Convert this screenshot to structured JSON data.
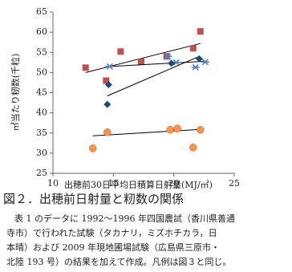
{
  "chart_data": {
    "type": "scatter",
    "xlabel": "出穂前30日平均日積算日射量(MJ/㎡)",
    "ylabel": "㎡当たり籾数(千粒)",
    "xlim": [
      10,
      25
    ],
    "xticks": [
      10,
      15,
      20,
      25
    ],
    "ylim": [
      25,
      65
    ],
    "yticks": [
      25,
      30,
      35,
      40,
      45,
      50,
      55,
      60,
      65
    ],
    "series": [
      {
        "marker": "square",
        "color": "#c0504d",
        "x": [
          12.7,
          14.4,
          15.6,
          17.3,
          19.4,
          21.6,
          22.2
        ],
        "values": [
          51.2,
          48.0,
          55.2,
          52.7,
          54.0,
          56.0,
          60.2
        ],
        "trend": {
          "x": [
            12.7,
            22.2
          ],
          "values": [
            50.0,
            57.2
          ]
        }
      },
      {
        "marker": "asterisk",
        "color": "#4f81bd",
        "x": [
          14.7,
          19.5,
          20.2,
          21.8,
          22.6
        ],
        "values": [
          51.5,
          54.0,
          52.5,
          51.3,
          52.6
        ],
        "trend": {
          "x": [
            14.7,
            22.6
          ],
          "values": [
            51.5,
            52.8
          ]
        }
      },
      {
        "marker": "diamond",
        "color": "#1f497d",
        "x": [
          14.6,
          14.5,
          19.8,
          22.1
        ],
        "values": [
          47.0,
          42.1,
          52.3,
          53.4
        ],
        "trend": {
          "x": [
            14.5,
            22.1
          ],
          "values": [
            44.2,
            54.0
          ]
        }
      },
      {
        "marker": "circle",
        "color": "#f79646",
        "x": [
          13.3,
          14.5,
          19.7,
          20.3,
          21.6,
          22.2
        ],
        "values": [
          31.2,
          35.2,
          35.8,
          36.1,
          31.4,
          35.8
        ],
        "trend": {
          "x": [
            13.3,
            22.2
          ],
          "values": [
            34.3,
            35.9
          ]
        }
      }
    ]
  },
  "caption": {
    "title": "図２．出穂前日射量と籾数の関係",
    "lines": [
      "表 1 のデータに 1992～1996 年四国農試（香川県善通",
      "寺市）で行われた試験（タカナリ，ミズホチカラ，日",
      "本晴）および 2009 年現地圃場試験（広島県三原市・",
      "北陸 193 号）の結果を加えて作成。凡例は図３と同じ。"
    ]
  }
}
